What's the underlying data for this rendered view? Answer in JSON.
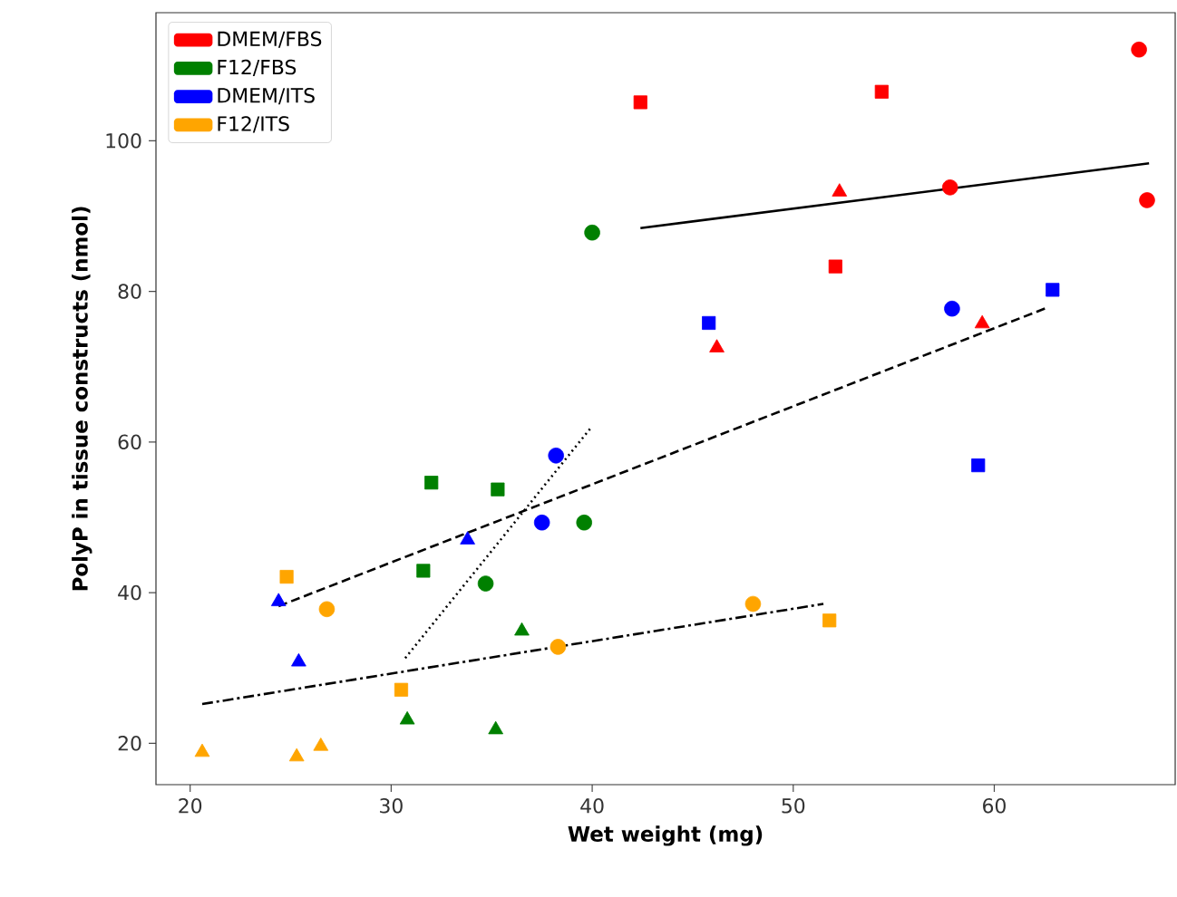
{
  "chart_data": {
    "type": "scatter",
    "xlabel": "Wet weight (mg)",
    "ylabel": "PolyP in tissue constructs (nmol)",
    "xlim": [
      18.3,
      69.0
    ],
    "ylim": [
      14.5,
      117
    ],
    "xticks": [
      20,
      30,
      40,
      50,
      60
    ],
    "yticks": [
      20,
      40,
      60,
      80,
      100
    ],
    "grid": false,
    "legend": "top left",
    "series": [
      {
        "name": "DMEM/FBS",
        "color": "#ff0000",
        "marker": "square",
        "x": [
          42.4,
          54.4,
          52.1
        ],
        "values": [
          105.1,
          106.5,
          83.3
        ]
      },
      {
        "color": "#ff0000",
        "marker": "triangle",
        "x": [
          52.3,
          46.2,
          59.4
        ],
        "values": [
          93.2,
          72.5,
          75.7
        ]
      },
      {
        "color": "#ff0000",
        "marker": "circle",
        "x": [
          67.2,
          57.8,
          67.6
        ],
        "values": [
          112.1,
          93.8,
          92.1
        ]
      },
      {
        "name": "F12/FBS",
        "color": "#008000",
        "marker": "square",
        "x": [
          32.0,
          35.3,
          31.6
        ],
        "values": [
          54.6,
          53.7,
          42.9
        ]
      },
      {
        "color": "#008000",
        "marker": "triangle",
        "x": [
          36.5,
          30.8,
          35.2
        ],
        "values": [
          34.9,
          23.1,
          21.8
        ]
      },
      {
        "color": "#008000",
        "marker": "circle",
        "x": [
          40.0,
          39.6,
          34.7
        ],
        "values": [
          87.8,
          49.3,
          41.2
        ]
      },
      {
        "name": "DMEM/ITS",
        "color": "#0000ff",
        "marker": "square",
        "x": [
          45.8,
          62.9,
          59.2
        ],
        "values": [
          75.8,
          80.2,
          56.9
        ]
      },
      {
        "color": "#0000ff",
        "marker": "triangle",
        "x": [
          33.8,
          24.4,
          25.4
        ],
        "values": [
          47.0,
          38.8,
          30.8
        ]
      },
      {
        "color": "#0000ff",
        "marker": "circle",
        "x": [
          57.9,
          38.2,
          37.5
        ],
        "values": [
          77.7,
          58.2,
          49.3
        ]
      },
      {
        "name": "F12/ITS",
        "color": "#ffa500",
        "marker": "square",
        "x": [
          24.8,
          30.5,
          51.8
        ],
        "values": [
          42.1,
          27.1,
          36.3
        ]
      },
      {
        "color": "#ffa500",
        "marker": "triangle",
        "x": [
          20.6,
          25.3,
          26.5
        ],
        "values": [
          18.8,
          18.2,
          19.6
        ]
      },
      {
        "color": "#ffa500",
        "marker": "circle",
        "x": [
          26.8,
          38.3,
          48.0
        ],
        "values": [
          37.8,
          32.8,
          38.5
        ]
      },
      {
        "type": "line",
        "color": "#000000",
        "marker": "none",
        "line_style": "solid",
        "x": [
          42.4,
          67.7
        ],
        "values": [
          88.4,
          97.0
        ]
      },
      {
        "type": "line",
        "color": "#000000",
        "marker": "none",
        "line_style": "dashed",
        "x": [
          24.4,
          62.6
        ],
        "values": [
          38.2,
          77.8
        ]
      },
      {
        "type": "line",
        "color": "#000000",
        "marker": "none",
        "line_style": "dotted",
        "x": [
          30.7,
          40.0
        ],
        "values": [
          31.3,
          62.1
        ]
      },
      {
        "type": "line",
        "color": "#000000",
        "marker": "none",
        "line_style": "dashdot",
        "x": [
          20.6,
          51.5
        ],
        "values": [
          25.2,
          38.5
        ]
      }
    ]
  }
}
